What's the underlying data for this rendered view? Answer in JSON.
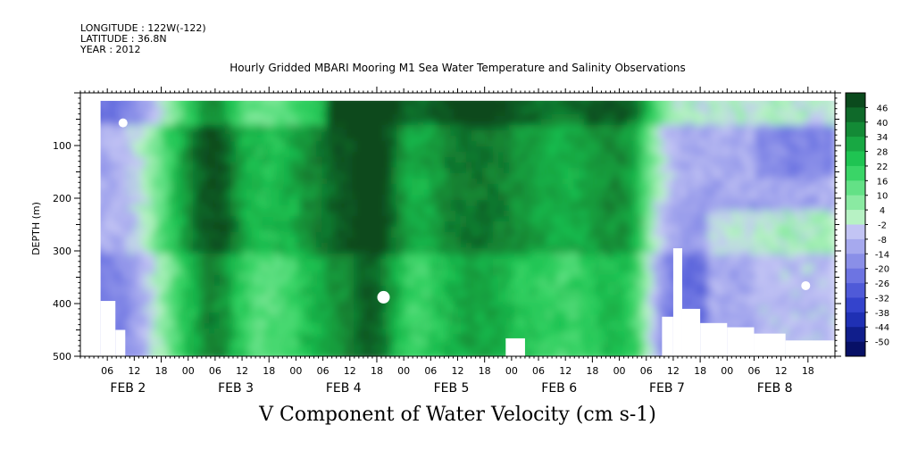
{
  "header": {
    "longitude": "LONGITUDE : 122W(-122)",
    "latitude": "LATITUDE : 36.8N",
    "year": "YEAR : 2012"
  },
  "chart_data": {
    "type": "heatmap",
    "title": "Hourly Gridded MBARI Mooring M1 Sea Water Temperature and Salinity Observations",
    "subtitle": "V Component of Water Velocity (cm s-1)",
    "ylabel": "DEPTH (m)",
    "ylim": [
      500,
      0
    ],
    "yticks": [
      100,
      200,
      300,
      400,
      500
    ],
    "xlim_hours": [
      0,
      168
    ],
    "xtick_labels": [
      "06",
      "12",
      "18",
      "00",
      "06",
      "12",
      "18",
      "00",
      "06",
      "12",
      "18",
      "00",
      "06",
      "12",
      "18",
      "00",
      "06",
      "12",
      "18",
      "00",
      "06",
      "12",
      "18",
      "00",
      "06",
      "12",
      "18"
    ],
    "day_labels": [
      "FEB  2",
      "FEB  3",
      "FEB  4",
      "FEB  5",
      "FEB  6",
      "FEB  7",
      "FEB  8"
    ],
    "colorbar": {
      "labels": [
        "46",
        "40",
        "34",
        "28",
        "22",
        "16",
        "10",
        "4",
        "-2",
        "-8",
        "-14",
        "-20",
        "-26",
        "-32",
        "-38",
        "-44",
        "-50"
      ],
      "colors": [
        "#0b4a1d",
        "#0f6a2a",
        "#138a36",
        "#18a843",
        "#1fc452",
        "#3ad567",
        "#63e186",
        "#8aeaa2",
        "#b7f2c4",
        "#c2c4f4",
        "#a6a9ee",
        "#8a8fe8",
        "#6d74e2",
        "#4f5ad8",
        "#3443cc",
        "#1f30b4",
        "#101e8c",
        "#071066"
      ]
    }
  }
}
